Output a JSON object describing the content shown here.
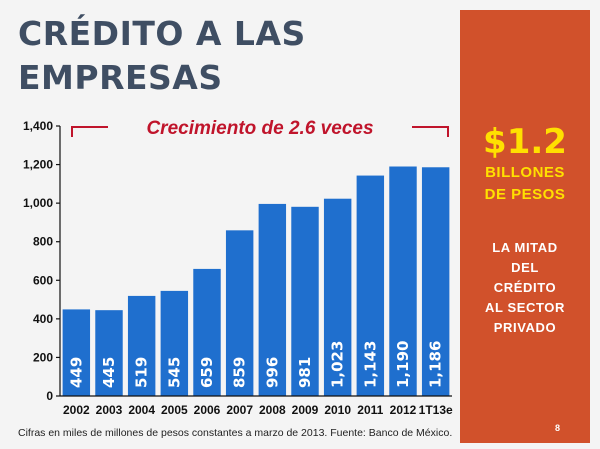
{
  "title_lines": [
    "CRÉDITO A LAS",
    "EMPRESAS"
  ],
  "growth_annotation": "Crecimiento de 2.6 veces",
  "side_panel": {
    "amount": "$1.2",
    "amount_unit_lines": [
      "BILLONES",
      "DE PESOS"
    ],
    "note_lines": [
      "LA MITAD",
      "DEL",
      "CRÉDITO",
      "AL SECTOR",
      "PRIVADO"
    ],
    "slide_number": "8"
  },
  "source_note": "Cifras en miles de millones de pesos constantes a marzo de 2013. Fuente: Banco de México.",
  "colors": {
    "bar": "#1f6fce",
    "panel": "#d1512b",
    "title": "#3f4e63",
    "annotation": "#c0142b",
    "amount": "#ffe000"
  },
  "chart_data": {
    "type": "bar",
    "categories": [
      "2002",
      "2003",
      "2004",
      "2005",
      "2006",
      "2007",
      "2008",
      "2009",
      "2010",
      "2011",
      "2012",
      "1T13e"
    ],
    "values": [
      449,
      445,
      519,
      545,
      659,
      859,
      996,
      981,
      1023,
      1143,
      1190,
      1186
    ],
    "data_labels": [
      "449",
      "445",
      "519",
      "545",
      "659",
      "859",
      "996",
      "981",
      "1,023",
      "1,143",
      "1,190",
      "1,186"
    ],
    "y_ticks": [
      0,
      200,
      400,
      600,
      800,
      1000,
      1200,
      1400
    ],
    "y_tick_labels": [
      "0",
      "200",
      "400",
      "600",
      "800",
      "1,000",
      "1,200",
      "1,400"
    ],
    "ylim": [
      0,
      1400
    ],
    "title": "",
    "xlabel": "",
    "ylabel": "",
    "grid": false,
    "legend": false
  }
}
